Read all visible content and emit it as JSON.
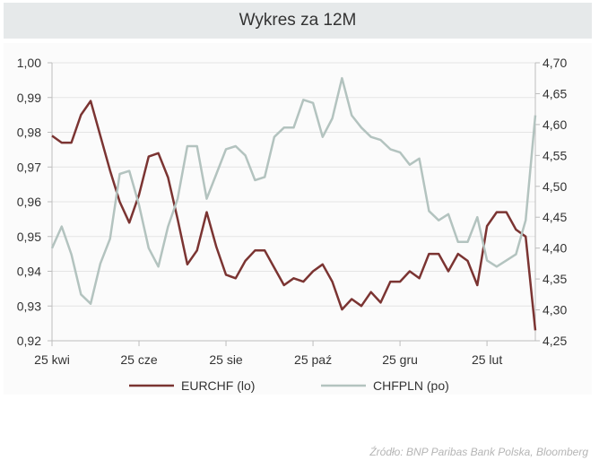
{
  "title": "Wykres za 12M",
  "source": "Źródło:  BNP Paribas Bank Polska, Bloomberg",
  "chart_data": {
    "type": "line",
    "title": "Wykres za 12M",
    "x_tick_labels": [
      "25 kwi",
      "25 cze",
      "25 sie",
      "25 paź",
      "25 gru",
      "25 lut"
    ],
    "x_tick_index": [
      0,
      9,
      18,
      27,
      36,
      45
    ],
    "left_axis": {
      "ylim": [
        0.92,
        1.0
      ],
      "ticks": [
        "0,92",
        "0,93",
        "0,94",
        "0,95",
        "0,96",
        "0,97",
        "0,98",
        "0,99",
        "1,00"
      ],
      "tick_values": [
        0.92,
        0.93,
        0.94,
        0.95,
        0.96,
        0.97,
        0.98,
        0.99,
        1.0
      ]
    },
    "right_axis": {
      "ylim": [
        4.25,
        4.7
      ],
      "ticks": [
        "4,25",
        "4,30",
        "4,35",
        "4,40",
        "4,45",
        "4,50",
        "4,55",
        "4,60",
        "4,65",
        "4,70"
      ],
      "tick_values": [
        4.25,
        4.3,
        4.35,
        4.4,
        4.45,
        4.5,
        4.55,
        4.6,
        4.65,
        4.7
      ]
    },
    "series": [
      {
        "name": "EURCHF (lo)",
        "axis": "left",
        "color": "#7b3432",
        "values": [
          0.979,
          0.977,
          0.977,
          0.985,
          0.989,
          0.979,
          0.969,
          0.96,
          0.954,
          0.962,
          0.973,
          0.974,
          0.967,
          0.955,
          0.942,
          0.946,
          0.957,
          0.947,
          0.939,
          0.938,
          0.943,
          0.946,
          0.946,
          0.941,
          0.936,
          0.938,
          0.937,
          0.94,
          0.942,
          0.937,
          0.929,
          0.932,
          0.93,
          0.934,
          0.931,
          0.937,
          0.937,
          0.94,
          0.938,
          0.945,
          0.945,
          0.94,
          0.945,
          0.943,
          0.936,
          0.953,
          0.957,
          0.957,
          0.952,
          0.95,
          0.923
        ]
      },
      {
        "name": "CHFPLN (po)",
        "axis": "right",
        "color": "#b3c3bf",
        "values": [
          4.4,
          4.435,
          4.39,
          4.325,
          4.31,
          4.375,
          4.415,
          4.52,
          4.525,
          4.47,
          4.4,
          4.37,
          4.435,
          4.48,
          4.565,
          4.565,
          4.48,
          4.52,
          4.56,
          4.565,
          4.55,
          4.51,
          4.515,
          4.58,
          4.595,
          4.595,
          4.64,
          4.635,
          4.58,
          4.61,
          4.675,
          4.615,
          4.595,
          4.58,
          4.575,
          4.56,
          4.555,
          4.535,
          4.545,
          4.46,
          4.445,
          4.455,
          4.41,
          4.41,
          4.45,
          4.38,
          4.37,
          4.38,
          4.39,
          4.445,
          4.615
        ]
      }
    ]
  }
}
